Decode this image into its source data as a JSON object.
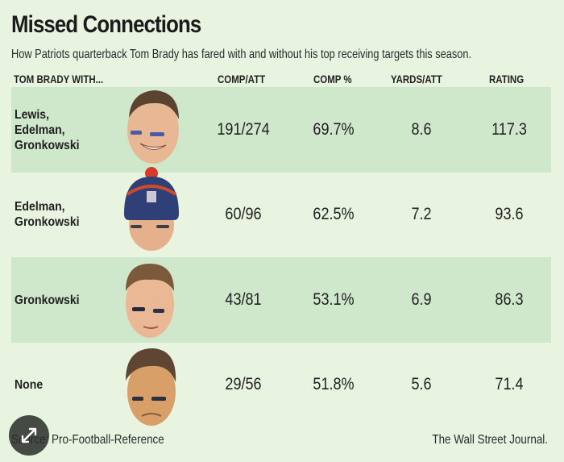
{
  "title": "Missed Connections",
  "subtitle": "How Patriots quarterback Tom Brady has fared with and without his top receiving targets this season.",
  "columns": [
    "TOM BRADY WITH...",
    "COMP/ATT",
    "COMP %",
    "YARDS/ATT",
    "RATING"
  ],
  "rows": [
    {
      "label_lines": [
        "Lewis,",
        "Edelman,",
        "Gronkowski"
      ],
      "face": "tom-brady-smiling-photo",
      "comp_att": "191/274",
      "comp_pct": "69.7%",
      "yards_att": "8.6",
      "rating": "117.3"
    },
    {
      "label_lines": [
        "Edelman,",
        "Gronkowski"
      ],
      "face": "tom-brady-beanie-photo",
      "comp_att": "60/96",
      "comp_pct": "62.5%",
      "yards_att": "7.2",
      "rating": "93.6"
    },
    {
      "label_lines": [
        "Gronkowski"
      ],
      "face": "tom-brady-serious-photo",
      "comp_att": "43/81",
      "comp_pct": "53.1%",
      "yards_att": "6.9",
      "rating": "86.3"
    },
    {
      "label_lines": [
        "None"
      ],
      "face": "tom-brady-frowning-photo",
      "comp_att": "29/56",
      "comp_pct": "51.8%",
      "yards_att": "5.6",
      "rating": "71.4"
    }
  ],
  "footer": {
    "source": "Source: Pro-Football-Reference",
    "credit": "The Wall Street Journal."
  },
  "colors": {
    "background": "#e8f4e0",
    "shaded_row": "#cfe8cb",
    "text": "#222222"
  }
}
